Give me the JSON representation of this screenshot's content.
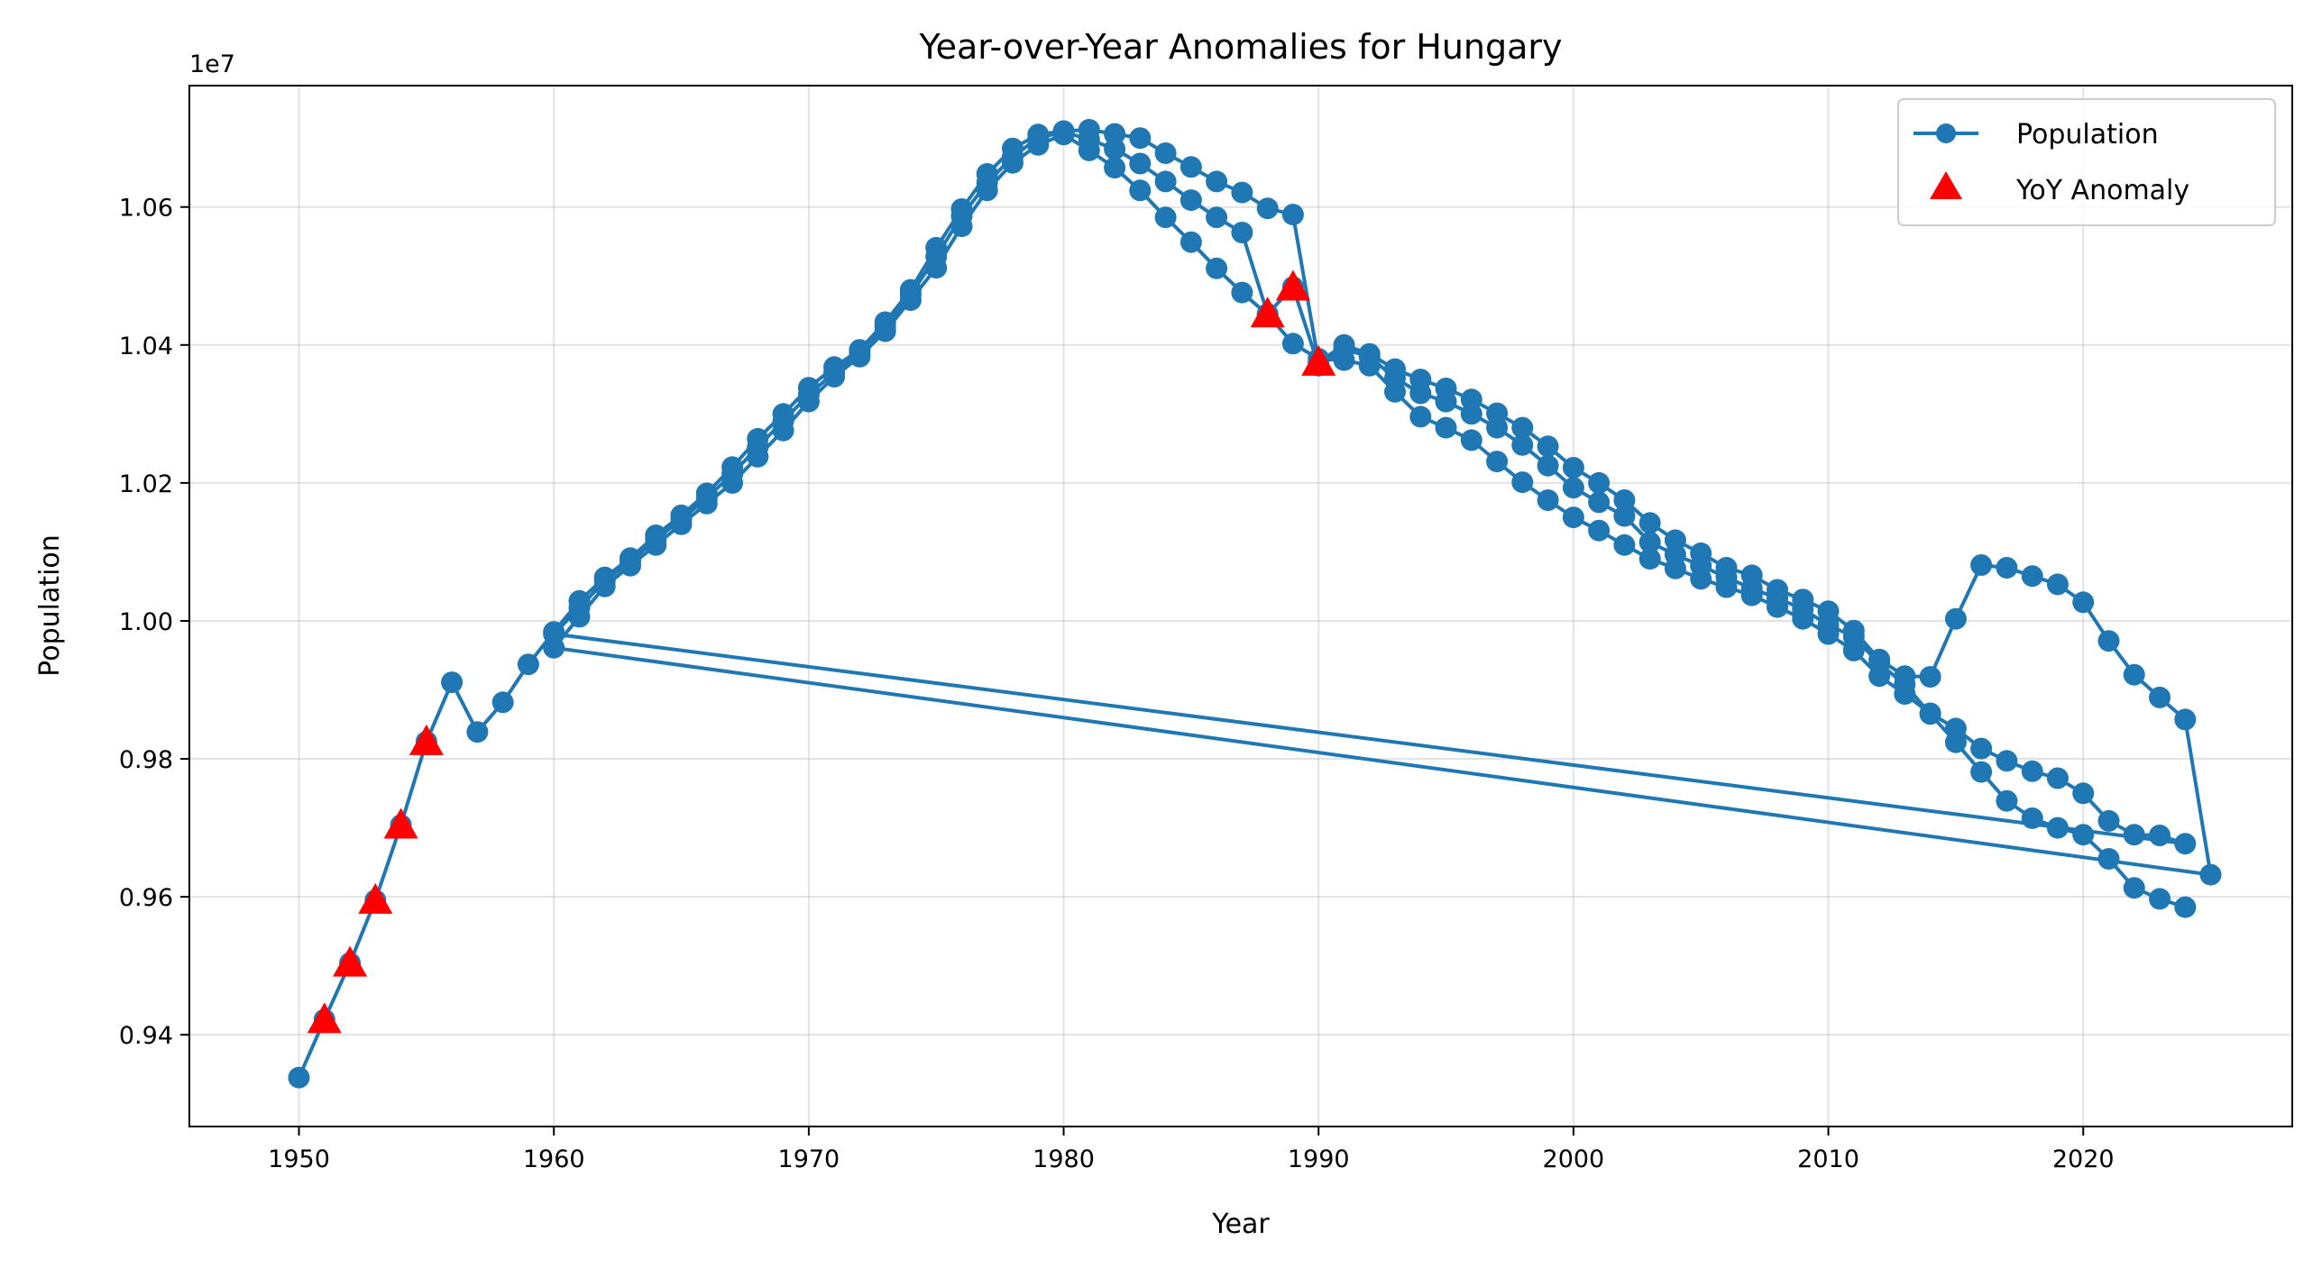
{
  "chart_data": {
    "type": "line",
    "title": "Year-over-Year Anomalies for Hungary",
    "xlabel": "Year",
    "ylabel": "Population",
    "y_offset_label": "1e7",
    "xlim": [
      1945.7,
      2028.2
    ],
    "ylim": [
      9267000,
      10776000
    ],
    "x_ticks": [
      1950,
      1960,
      1970,
      1980,
      1990,
      2000,
      2010,
      2020
    ],
    "x_tick_labels": [
      "1950",
      "1960",
      "1970",
      "1980",
      "1990",
      "2000",
      "2010",
      "2020"
    ],
    "y_ticks": [
      9400000,
      9600000,
      9800000,
      10000000,
      10200000,
      10400000,
      10600000
    ],
    "y_tick_labels": [
      "0.94",
      "0.96",
      "0.98",
      "1.00",
      "1.02",
      "1.04",
      "1.06"
    ],
    "grid": true,
    "legend_position": "top-right",
    "colors": {
      "line": "#1f77b4",
      "anomaly": "#ff0000"
    },
    "series": [
      {
        "name": "Population",
        "x": [
          1950,
          1951,
          1952,
          1953,
          1954,
          1955,
          1956,
          1957,
          1958,
          1959,
          1960,
          1961,
          1962,
          1963,
          1964,
          1965,
          1966,
          1967,
          1968,
          1969,
          1970,
          1971,
          1972,
          1973,
          1974,
          1975,
          1976,
          1977,
          1978,
          1979,
          1980,
          1981,
          1982,
          1983,
          1984,
          1985,
          1986,
          1987,
          1988,
          1989,
          1990,
          1991,
          1992,
          1993,
          1994,
          1995,
          1996,
          1997,
          1998,
          1999,
          2000,
          2001,
          2002,
          2003,
          2004,
          2005,
          2006,
          2007,
          2008,
          2009,
          2010,
          2011,
          2012,
          2013,
          2014,
          2015,
          2016,
          2017,
          2018,
          2019,
          2020,
          2021,
          2022,
          2023,
          2024,
          2025,
          1960,
          1961,
          1962,
          1963,
          1964,
          1965,
          1966,
          1967,
          1968,
          1969,
          1970,
          1971,
          1972,
          1973,
          1974,
          1975,
          1976,
          1977,
          1978,
          1979,
          1980,
          1981,
          1982,
          1983,
          1984,
          1985,
          1986,
          1987,
          1988,
          1989,
          1990,
          1991,
          1992,
          1993,
          1994,
          1995,
          1996,
          1997,
          1998,
          1999,
          2000,
          2001,
          2002,
          2003,
          2004,
          2005,
          2006,
          2007,
          2008,
          2009,
          2010,
          2011,
          2012,
          2013,
          2014,
          2015,
          2016,
          2017,
          2018,
          2019,
          2020,
          2021,
          2022,
          2023,
          2024,
          1960,
          1961,
          1962,
          1963,
          1964,
          1965,
          1966,
          1967,
          1968,
          1969,
          1970,
          1971,
          1972,
          1973,
          1974,
          1975,
          1976,
          1977,
          1978,
          1979,
          1980,
          1981,
          1982,
          1983,
          1984,
          1985,
          1986,
          1987,
          1988,
          1989,
          1990,
          1991,
          1992,
          1993,
          1994,
          1995,
          1996,
          1997,
          1998,
          1999,
          2000,
          2001,
          2002,
          2003,
          2004,
          2005,
          2006,
          2007,
          2008,
          2009,
          2010,
          2011,
          2012,
          2013,
          2014,
          2015,
          2016,
          2017,
          2018,
          2019,
          2020,
          2021,
          2022,
          2023,
          2024
        ],
        "y": [
          9338000,
          9422000,
          9504000,
          9595000,
          9704000,
          9825000,
          9911000,
          9839000,
          9882000,
          9937000,
          9984000,
          10029000,
          10063000,
          10091000,
          10124000,
          10153000,
          10185000,
          10223000,
          10264000,
          10300000,
          10338000,
          10368000,
          10393000,
          10433000,
          10480000,
          10541000,
          10597000,
          10648000,
          10685000,
          10705000,
          10710000,
          10712000,
          10706000,
          10700000,
          10678000,
          10658000,
          10637000,
          10621000,
          10598000,
          10589000,
          10375000,
          10400000,
          10387000,
          10365000,
          10350000,
          10337000,
          10321000,
          10301000,
          10280000,
          10253000,
          10222000,
          10200000,
          10175000,
          10142000,
          10117000,
          10098000,
          10077000,
          10066000,
          10045000,
          10031000,
          10014000,
          9986000,
          9944000,
          9920000,
          9919000,
          10003000,
          10081000,
          10077000,
          10065000,
          10053000,
          10027000,
          9971000,
          9922000,
          9889000,
          9857000,
          9632000,
          9961000,
          10006000,
          10050000,
          10080000,
          10110000,
          10140000,
          10170000,
          10200000,
          10238000,
          10276000,
          10318000,
          10354000,
          10383000,
          10420000,
          10465000,
          10512000,
          10572000,
          10624000,
          10664000,
          10690000,
          10705000,
          10682000,
          10657000,
          10624000,
          10585000,
          10549000,
          10511000,
          10476000,
          10444000,
          10402000,
          10380000,
          10378000,
          10370000,
          10332000,
          10296000,
          10280000,
          10262000,
          10231000,
          10201000,
          10175000,
          10150000,
          10131000,
          10110000,
          10090000,
          10076000,
          10061000,
          10049000,
          10037000,
          10020000,
          10003000,
          9981000,
          9957000,
          9920000,
          9894000,
          9866000,
          9844000,
          9815000,
          9797000,
          9782000,
          9772000,
          9750000,
          9710000,
          9690000,
          9689000,
          9677000,
          9981000,
          10019000,
          10058000,
          10086000,
          10118000,
          10147000,
          10178000,
          10213000,
          10252000,
          10290000,
          10328000,
          10360000,
          10388000,
          10426000,
          10473000,
          10528000,
          10587000,
          10635000,
          10673000,
          10700000,
          10709000,
          10698000,
          10684000,
          10663000,
          10637000,
          10610000,
          10585000,
          10563000,
          10445000,
          10484000,
          10370000,
          10394000,
          10383000,
          10352000,
          10330000,
          10318000,
          10300000,
          10280000,
          10255000,
          10225000,
          10193000,
          10172000,
          10152000,
          10114000,
          10096000,
          10080000,
          10063000,
          10047000,
          10033000,
          10017000,
          9994000,
          9977000,
          9938000,
          9908000,
          9865000,
          9824000,
          9781000,
          9739000,
          9714000,
          9700000,
          9690000,
          9655000,
          9613000,
          9597000,
          9585000
        ]
      },
      {
        "name": "YoY Anomaly",
        "x": [
          1951,
          1952,
          1953,
          1954,
          1955,
          1988,
          1989,
          1990
        ],
        "y": [
          9422000,
          9504000,
          9595000,
          9704000,
          9825000,
          10445000,
          10484000,
          10375000
        ]
      }
    ]
  }
}
